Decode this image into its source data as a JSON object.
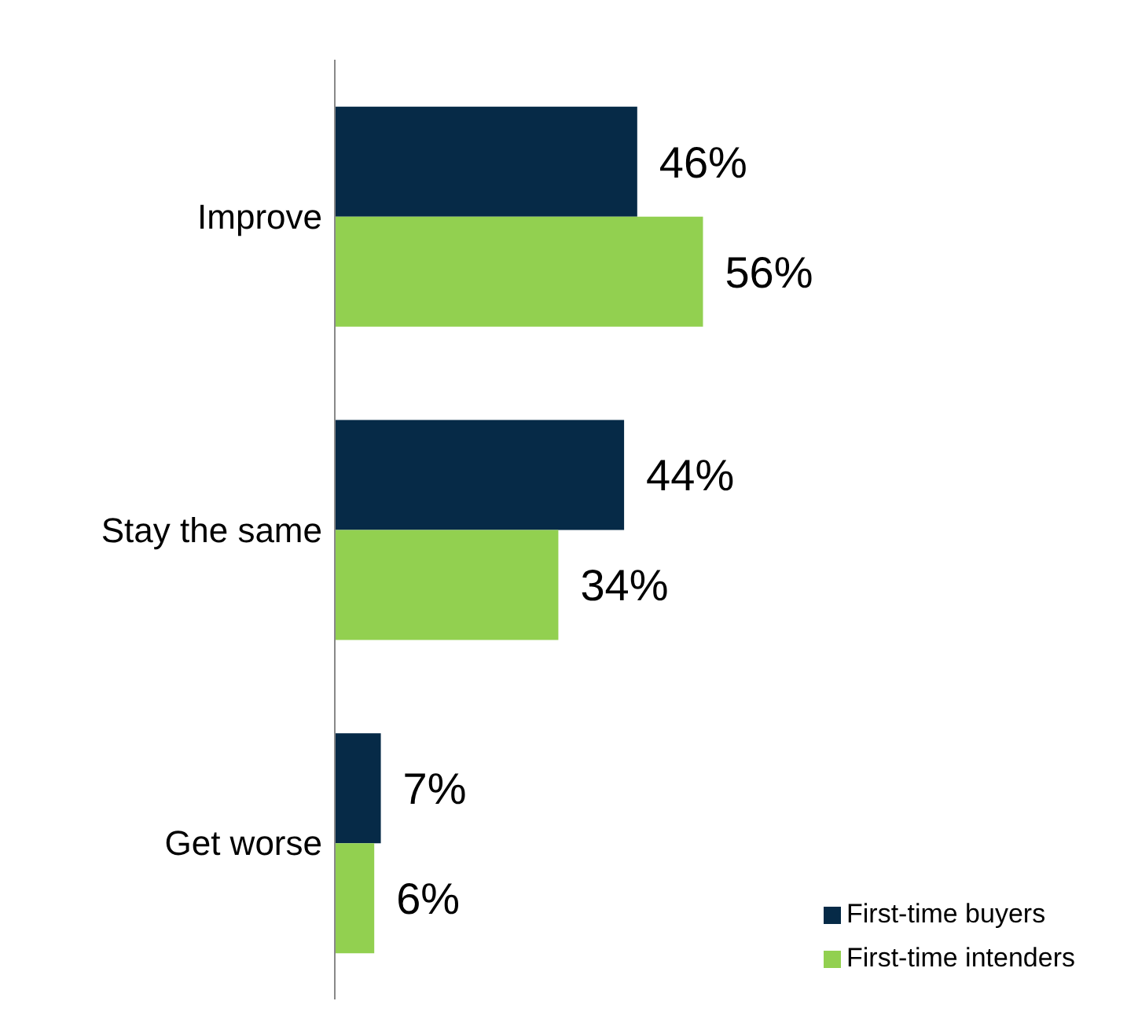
{
  "chart_data": {
    "type": "bar",
    "orientation": "horizontal",
    "categories": [
      "Improve",
      "Stay the same",
      "Get worse"
    ],
    "series": [
      {
        "name": "First-time buyers",
        "color": "#062a47",
        "values": [
          46,
          44,
          7
        ],
        "value_labels": [
          "46%",
          "44%",
          "7%"
        ]
      },
      {
        "name": "First-time intenders",
        "color": "#92d050",
        "values": [
          56,
          34,
          6
        ],
        "value_labels": [
          "56%",
          "34%",
          "6%"
        ]
      }
    ],
    "legend": "bottom right",
    "grid": false
  }
}
